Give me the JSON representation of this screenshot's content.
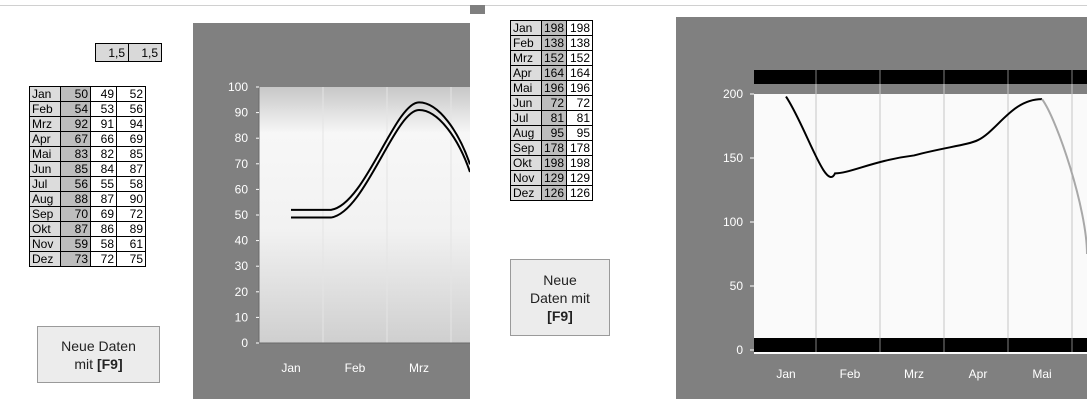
{
  "factors": [
    "1,5",
    "1,5"
  ],
  "button1": {
    "line1": "Neue Daten",
    "line2a": "mit ",
    "key": "[F9]"
  },
  "button2": {
    "line1": "Neue",
    "line2": "Daten mit",
    "key": "[F9]"
  },
  "table1": [
    [
      "Jan",
      "50",
      "49",
      "52"
    ],
    [
      "Feb",
      "54",
      "53",
      "56"
    ],
    [
      "Mrz",
      "92",
      "91",
      "94"
    ],
    [
      "Apr",
      "67",
      "66",
      "69"
    ],
    [
      "Mai",
      "83",
      "82",
      "85"
    ],
    [
      "Jun",
      "85",
      "84",
      "87"
    ],
    [
      "Jul",
      "56",
      "55",
      "58"
    ],
    [
      "Aug",
      "88",
      "87",
      "90"
    ],
    [
      "Sep",
      "70",
      "69",
      "72"
    ],
    [
      "Okt",
      "87",
      "86",
      "89"
    ],
    [
      "Nov",
      "59",
      "58",
      "61"
    ],
    [
      "Dez",
      "73",
      "72",
      "75"
    ]
  ],
  "table2": [
    [
      "Jan",
      "198",
      "198"
    ],
    [
      "Feb",
      "138",
      "138"
    ],
    [
      "Mrz",
      "152",
      "152"
    ],
    [
      "Apr",
      "164",
      "164"
    ],
    [
      "Mai",
      "196",
      "196"
    ],
    [
      "Jun",
      "72",
      "72"
    ],
    [
      "Jul",
      "81",
      "81"
    ],
    [
      "Aug",
      "95",
      "95"
    ],
    [
      "Sep",
      "178",
      "178"
    ],
    [
      "Okt",
      "198",
      "198"
    ],
    [
      "Nov",
      "129",
      "129"
    ],
    [
      "Dez",
      "126",
      "126"
    ]
  ],
  "chart_data": [
    {
      "type": "line",
      "categories": [
        "Jan",
        "Feb",
        "Mrz"
      ],
      "series": [
        {
          "values": [
            49,
            53,
            91
          ]
        },
        {
          "values": [
            52,
            56,
            94
          ]
        }
      ],
      "ylim": [
        0,
        100
      ],
      "yticks": [
        "0",
        "10",
        "20",
        "30",
        "40",
        "50",
        "60",
        "70",
        "80",
        "90",
        "100"
      ],
      "grid": true
    },
    {
      "type": "line",
      "categories": [
        "Jan",
        "Feb",
        "Mrz",
        "Apr",
        "Mai"
      ],
      "series": [
        {
          "values": [
            198,
            138,
            152,
            164,
            196
          ]
        }
      ],
      "ylim": [
        0,
        200
      ],
      "yticks": [
        "0",
        "50",
        "100",
        "150",
        "200"
      ],
      "grid": true
    }
  ]
}
